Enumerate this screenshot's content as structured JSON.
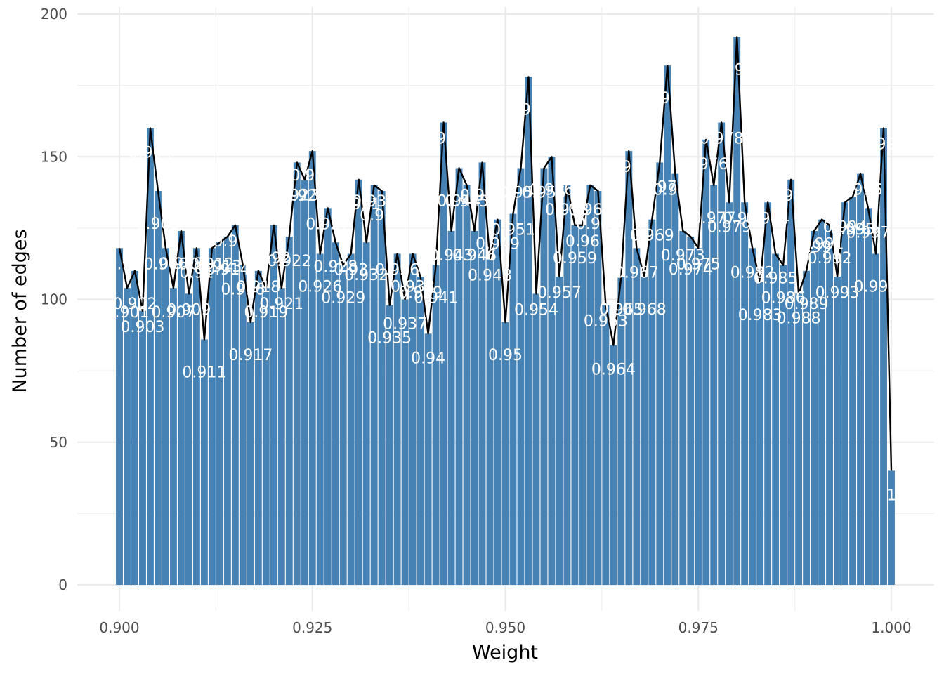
{
  "chart_data": {
    "type": "bar",
    "title": "",
    "xlabel": "Weight",
    "ylabel": "Number of edges",
    "xlim": [
      0.895,
      1.0055
    ],
    "ylim": [
      0,
      200
    ],
    "x_ticks": [
      "0.900",
      "0.925",
      "0.950",
      "0.975",
      "1.000"
    ],
    "x_tick_values": [
      0.9,
      0.925,
      0.95,
      0.975,
      1.0
    ],
    "y_ticks": [
      "0",
      "50",
      "100",
      "150",
      "200"
    ],
    "y_tick_values": [
      0,
      50,
      100,
      150,
      200
    ],
    "grid": true,
    "bar_color": "#4682b4",
    "line_color": "#000000",
    "series": [
      {
        "values": [
          118,
          104,
          110,
          96,
          160,
          138,
          118,
          104,
          124,
          102,
          118,
          86,
          118,
          120,
          122,
          126,
          112,
          92,
          110,
          104,
          126,
          104,
          122,
          148,
          142,
          152,
          116,
          132,
          120,
          112,
          116,
          142,
          120,
          140,
          138,
          98,
          116,
          100,
          116,
          108,
          88,
          112,
          162,
          124,
          146,
          140,
          124,
          148,
          114,
          128,
          92,
          130,
          146,
          178,
          102,
          146,
          150,
          108,
          140,
          126,
          126,
          140,
          138,
          98,
          84,
          108,
          152,
          118,
          108,
          128,
          148,
          182,
          144,
          124,
          122,
          118,
          156,
          140,
          162,
          134,
          192,
          134,
          118,
          106,
          134,
          116,
          112,
          142,
          102,
          110,
          124,
          128,
          126,
          108,
          134,
          136,
          144,
          132,
          116,
          160,
          40
        ]
      }
    ],
    "bar_labels": [
      "0.9",
      "0.901",
      "0.902",
      "0.903",
      "0.904",
      "0.905",
      "0.906",
      "0.907",
      "0.908",
      "0.909",
      "0.91",
      "0.911",
      "0.912",
      "0.913",
      "0.914",
      "0.915",
      "0.916",
      "0.917",
      "0.918",
      "0.919",
      "0.92",
      "0.921",
      "0.922",
      "0.923",
      "0.924",
      "0.925",
      "0.926",
      "0.927",
      "0.928",
      "0.929",
      "0.93",
      "0.931",
      "0.932",
      "0.933",
      "0.934",
      "0.935",
      "0.936",
      "0.937",
      "0.938",
      "0.939",
      "0.94",
      "0.941",
      "0.942",
      "0.943",
      "0.944",
      "0.945",
      "0.946",
      "0.947",
      "0.948",
      "0.949",
      "0.95",
      "0.951",
      "0.952",
      "0.953",
      "0.954",
      "0.955",
      "0.956",
      "0.957",
      "0.958",
      "0.959",
      "0.96",
      "0.961",
      "0.962",
      "0.963",
      "0.964",
      "0.965",
      "0.966",
      "0.967",
      "0.968",
      "0.969",
      "0.97",
      "0.971",
      "0.972",
      "0.973",
      "0.974",
      "0.975",
      "0.976",
      "0.977",
      "0.978",
      "0.979",
      "0.98",
      "0.981",
      "0.982",
      "0.983",
      "0.984",
      "0.985",
      "0.986",
      "0.987",
      "0.988",
      "0.989",
      "0.99",
      "0.991",
      "0.992",
      "0.993",
      "0.994",
      "0.995",
      "0.996",
      "0.997",
      "0.998",
      "0.999",
      "1"
    ]
  }
}
